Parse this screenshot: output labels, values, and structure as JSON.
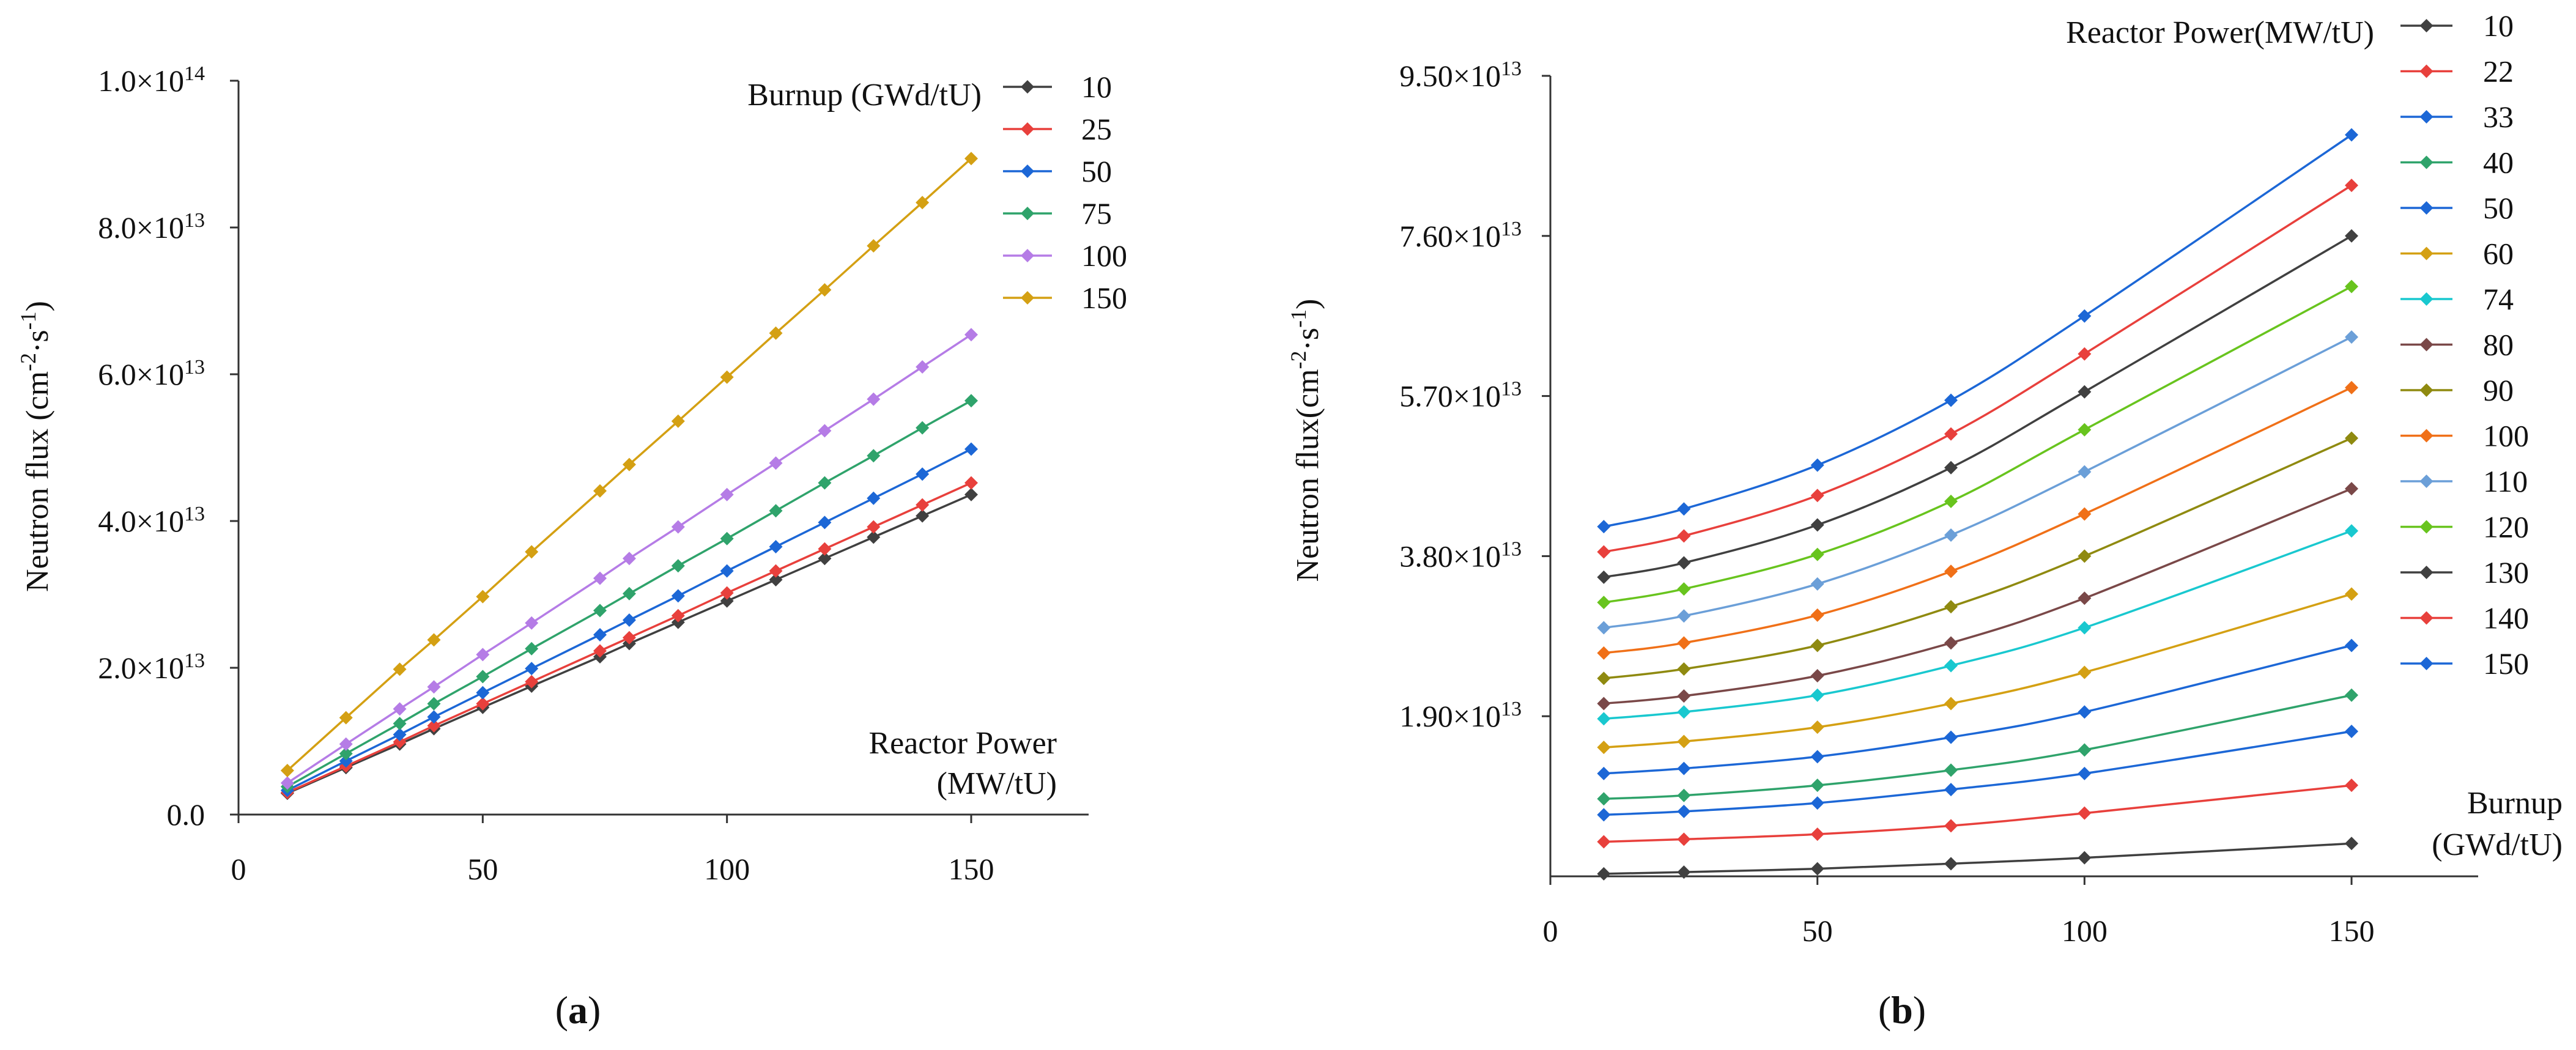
{
  "colors": {
    "s10": "#404040",
    "s25": "#e8403c",
    "s50": "#1c67d6",
    "s75": "#2fa36b",
    "s100": "#b57ce6",
    "s150": "#d4a013",
    "s22": "#e8403c",
    "s33": "#1c67d6",
    "s40": "#2fa36b",
    "s60": "#d4a013",
    "s74": "#19c8cf",
    "s80": "#7a4848",
    "s90": "#8f8a10",
    "s100b": "#f07018",
    "s110": "#6b9fd8",
    "s120": "#68c41e",
    "s130": "#404040",
    "s140": "#e8403c",
    "s150b": "#1c67d6"
  },
  "chart_data": [
    {
      "id": "a",
      "type": "line",
      "panel_label_open": "(",
      "panel_label_letter": "a",
      "panel_label_close": ")",
      "ylabel_main": "Neutron flux (cm",
      "ylabel_sup1": "-2",
      "ylabel_mid": "·s",
      "ylabel_sup2": "-1",
      "ylabel_end": ")",
      "xlabel_line1": "Reactor Power",
      "xlabel_line2": "(MW/tU)",
      "legend_title": "Burnup (GWd/tU)",
      "xlim": [
        0,
        175
      ],
      "ylim": [
        0,
        100000000000000.0
      ],
      "xticks": [
        0,
        50,
        100,
        150
      ],
      "yticks": [
        {
          "value": 0,
          "mant": "0.0",
          "exp": ""
        },
        {
          "value": 20000000000000.0,
          "mant": "2.0×10",
          "exp": "13"
        },
        {
          "value": 40000000000000.0,
          "mant": "4.0×10",
          "exp": "13"
        },
        {
          "value": 60000000000000.0,
          "mant": "6.0×10",
          "exp": "13"
        },
        {
          "value": 80000000000000.0,
          "mant": "8.0×10",
          "exp": "13"
        },
        {
          "value": 100000000000000.0,
          "mant": "1.0×10",
          "exp": "14"
        }
      ],
      "x": [
        10,
        22,
        33,
        40,
        50,
        60,
        74,
        80,
        90,
        100,
        110,
        120,
        130,
        140,
        150
      ],
      "series": [
        {
          "name": "10",
          "color_key": "s10",
          "values": [
            2900000000000.0,
            6400000000000.0,
            9600000000000.0,
            11700000000000.0,
            14600000000000.0,
            17500000000000.0,
            21500000000000.0,
            23300000000000.0,
            26200000000000.0,
            29100000000000.0,
            32000000000000.0,
            34900000000000.0,
            37800000000000.0,
            40700000000000.0,
            43600000000000.0
          ]
        },
        {
          "name": "25",
          "color_key": "s25",
          "values": [
            3000000000000.0,
            6600000000000.0,
            9900000000000.0,
            12100000000000.0,
            15100000000000.0,
            18100000000000.0,
            22300000000000.0,
            24100000000000.0,
            27100000000000.0,
            30200000000000.0,
            33200000000000.0,
            36200000000000.0,
            39200000000000.0,
            42200000000000.0,
            45200000000000.0
          ]
        },
        {
          "name": "50",
          "color_key": "s50",
          "values": [
            3300000000000.0,
            7300000000000.0,
            10900000000000.0,
            13300000000000.0,
            16600000000000.0,
            19900000000000.0,
            24500000000000.0,
            26500000000000.0,
            29800000000000.0,
            33200000000000.0,
            36500000000000.0,
            39800000000000.0,
            43100000000000.0,
            46400000000000.0,
            49800000000000.0
          ]
        },
        {
          "name": "75",
          "color_key": "s75",
          "values": [
            3800000000000.0,
            8300000000000.0,
            12400000000000.0,
            15100000000000.0,
            18800000000000.0,
            22600000000000.0,
            27800000000000.0,
            30100000000000.0,
            33900000000000.0,
            37600000000000.0,
            41400000000000.0,
            45200000000000.0,
            48900000000000.0,
            52700000000000.0,
            56400000000000.0
          ]
        },
        {
          "name": "100",
          "color_key": "s100",
          "values": [
            4300000000000.0,
            9600000000000.0,
            14400000000000.0,
            17400000000000.0,
            21800000000000.0,
            26100000000000.0,
            32200000000000.0,
            34900000000000.0,
            39200000000000.0,
            43600000000000.0,
            47900000000000.0,
            52300000000000.0,
            56600000000000.0,
            61000000000000.0,
            65400000000000.0
          ]
        },
        {
          "name": "150",
          "color_key": "s150",
          "values": [
            6000000000000.0,
            13200000000000.0,
            19800000000000.0,
            23800000000000.0,
            29700000000000.0,
            35800000000000.0,
            44100000000000.0,
            47700000000000.0,
            53600000000000.0,
            59600000000000.0,
            65600000000000.0,
            71500000000000.0,
            77500000000000.0,
            83400000000000.0,
            89400000000000.0
          ]
        }
      ]
    },
    {
      "id": "b",
      "type": "line",
      "panel_label_open": "(",
      "panel_label_letter": "b",
      "panel_label_close": ")",
      "ylabel_main": "Neutron flux(cm",
      "ylabel_sup1": "-2",
      "ylabel_mid": "·s",
      "ylabel_sup2": "-1",
      "ylabel_end": ")",
      "xlabel_line1": "Burnup",
      "xlabel_line2": "(GWd/tU)",
      "legend_title": "Reactor Power(MW/tU)",
      "xlim": [
        0,
        175
      ],
      "ylim": [
        0,
        95000000000000.0
      ],
      "xticks": [
        0,
        50,
        100,
        150
      ],
      "yticks": [
        {
          "value": 19000000000000.0,
          "mant": "1.90×10",
          "exp": "13"
        },
        {
          "value": 38000000000000.0,
          "mant": "3.80×10",
          "exp": "13"
        },
        {
          "value": 57000000000000.0,
          "mant": "5.70×10",
          "exp": "13"
        },
        {
          "value": 76000000000000.0,
          "mant": "7.60×10",
          "exp": "13"
        },
        {
          "value": 95000000000000.0,
          "mant": "9.50×10",
          "exp": "13"
        }
      ],
      "x": [
        10,
        25,
        50,
        75,
        100,
        150
      ],
      "series": [
        {
          "name": "10",
          "color_key": "s10",
          "values": [
            300000000000.0,
            500000000000.0,
            900000000000.0,
            1500000000000.0,
            2200000000000.0,
            3900000000000.0
          ]
        },
        {
          "name": "22",
          "color_key": "s22",
          "values": [
            4100000000000.0,
            4400000000000.0,
            5000000000000.0,
            6000000000000.0,
            7500000000000.0,
            10800000000000.0
          ]
        },
        {
          "name": "33",
          "color_key": "s33",
          "values": [
            7300000000000.0,
            7700000000000.0,
            8700000000000.0,
            10300000000000.0,
            12200000000000.0,
            17200000000000.0
          ]
        },
        {
          "name": "40",
          "color_key": "s40",
          "values": [
            9200000000000.0,
            9600000000000.0,
            10800000000000.0,
            12600000000000.0,
            15000000000000.0,
            21500000000000.0
          ]
        },
        {
          "name": "50",
          "color_key": "s50",
          "values": [
            12200000000000.0,
            12800000000000.0,
            14200000000000.0,
            16500000000000.0,
            19500000000000.0,
            27400000000000.0
          ]
        },
        {
          "name": "60",
          "color_key": "s60",
          "values": [
            15300000000000.0,
            16000000000000.0,
            17700000000000.0,
            20500000000000.0,
            24200000000000.0,
            33500000000000.0
          ]
        },
        {
          "name": "74",
          "color_key": "s74",
          "values": [
            18700000000000.0,
            19500000000000.0,
            21500000000000.0,
            25000000000000.0,
            29500000000000.0,
            41000000000000.0
          ]
        },
        {
          "name": "80",
          "color_key": "s80",
          "values": [
            20500000000000.0,
            21400000000000.0,
            23800000000000.0,
            27700000000000.0,
            33000000000000.0,
            46000000000000.0
          ]
        },
        {
          "name": "90",
          "color_key": "s90",
          "values": [
            23500000000000.0,
            24600000000000.0,
            27400000000000.0,
            32000000000000.0,
            38000000000000.0,
            52000000000000.0
          ]
        },
        {
          "name": "100",
          "color_key": "s100b",
          "values": [
            26500000000000.0,
            27700000000000.0,
            31000000000000.0,
            36200000000000.0,
            43000000000000.0,
            58000000000000.0
          ]
        },
        {
          "name": "110",
          "color_key": "s110",
          "values": [
            29500000000000.0,
            30900000000000.0,
            34700000000000.0,
            40500000000000.0,
            48000000000000.0,
            64000000000000.0
          ]
        },
        {
          "name": "120",
          "color_key": "s120",
          "values": [
            32500000000000.0,
            34100000000000.0,
            38200000000000.0,
            44500000000000.0,
            53000000000000.0,
            70000000000000.0
          ]
        },
        {
          "name": "130",
          "color_key": "s130",
          "values": [
            35500000000000.0,
            37200000000000.0,
            41700000000000.0,
            48500000000000.0,
            57500000000000.0,
            76000000000000.0
          ]
        },
        {
          "name": "140",
          "color_key": "s140",
          "values": [
            38500000000000.0,
            40400000000000.0,
            45200000000000.0,
            52500000000000.0,
            62000000000000.0,
            82000000000000.0
          ]
        },
        {
          "name": "150",
          "color_key": "s150b",
          "values": [
            41500000000000.0,
            43600000000000.0,
            48800000000000.0,
            56500000000000.0,
            66500000000000.0,
            88000000000000.0
          ]
        }
      ]
    }
  ]
}
